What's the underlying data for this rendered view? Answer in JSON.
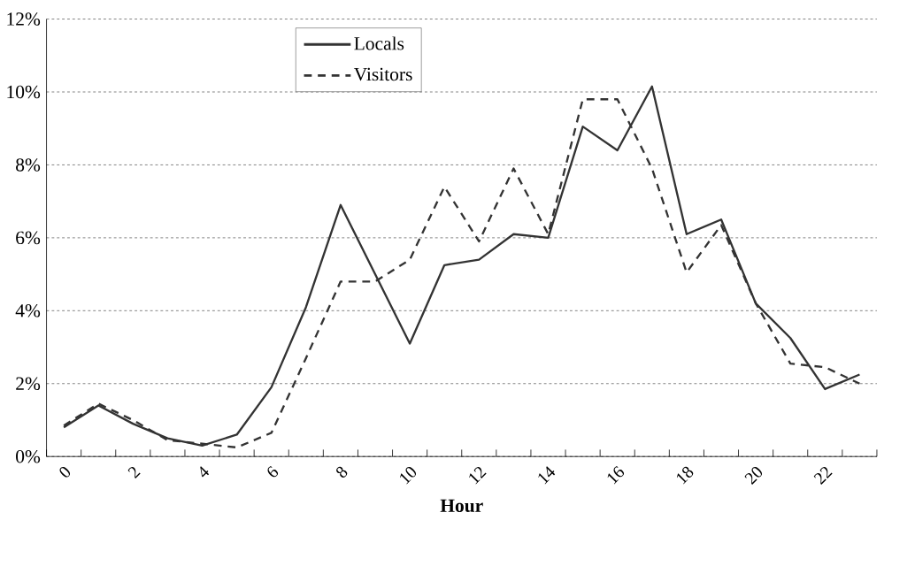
{
  "chart_data": {
    "type": "line",
    "xlabel": "Hour",
    "categories": [
      "0",
      null,
      "2",
      null,
      "4",
      null,
      "6",
      null,
      "8",
      null,
      "10",
      null,
      "12",
      null,
      "14",
      null,
      "16",
      null,
      "18",
      null,
      "20",
      null,
      "22",
      null
    ],
    "series": [
      {
        "name": "Locals",
        "color": "#333333",
        "line_style": "solid",
        "values": [
          0.8,
          1.4,
          0.9,
          0.5,
          0.3,
          0.6,
          1.9,
          4.1,
          6.9,
          5.0,
          3.1,
          5.25,
          5.4,
          6.1,
          6.0,
          9.05,
          8.4,
          10.15,
          6.1,
          6.5,
          4.2,
          3.25,
          1.85,
          2.25
        ]
      },
      {
        "name": "Visitors",
        "color": "#333333",
        "line_style": "dashed",
        "values": [
          0.85,
          1.45,
          1.0,
          0.45,
          0.35,
          0.25,
          0.65,
          2.7,
          4.8,
          4.8,
          5.4,
          7.4,
          5.9,
          7.9,
          6.1,
          9.8,
          9.8,
          7.9,
          5.05,
          6.35,
          4.2,
          2.55,
          2.45,
          2.0
        ]
      }
    ],
    "ylim": [
      0,
      12
    ],
    "yticks": [
      {
        "value": 0,
        "label": "0%"
      },
      {
        "value": 2,
        "label": "2%"
      },
      {
        "value": 4,
        "label": "4%"
      },
      {
        "value": 6,
        "label": "6%"
      },
      {
        "value": 8,
        "label": "8%"
      },
      {
        "value": 10,
        "label": "10%"
      },
      {
        "value": 12,
        "label": "12%"
      }
    ],
    "grid": "y",
    "legend": "top",
    "marker": "none"
  }
}
